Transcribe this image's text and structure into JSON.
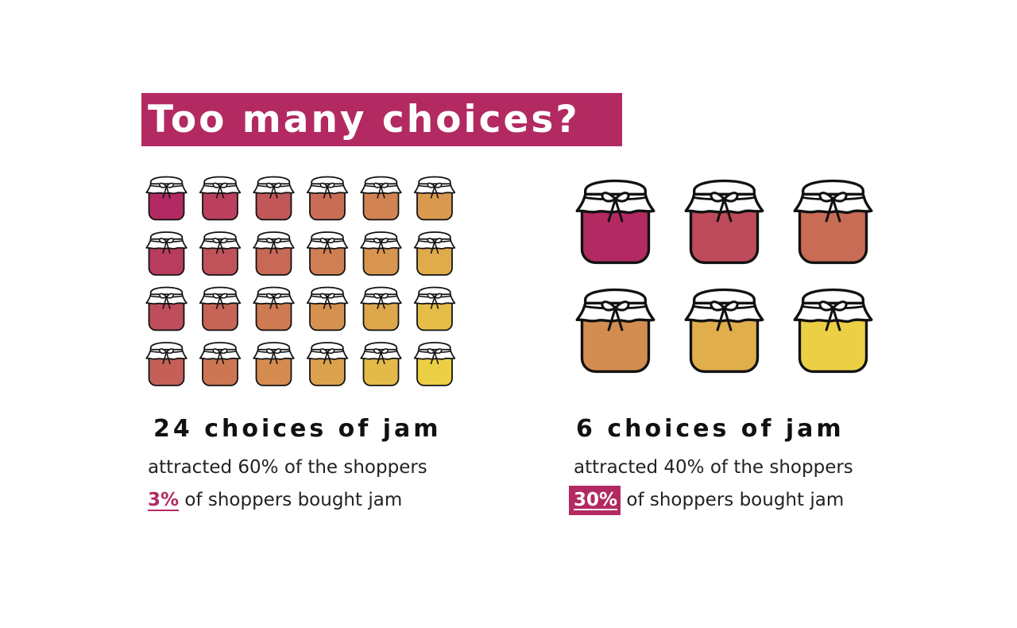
{
  "title": "Too many choices?",
  "left": {
    "heading": "24 choices of jam",
    "line1": "attracted 60% of the shoppers",
    "highlight": "3%",
    "line2_rest": " of shoppers bought jam"
  },
  "right": {
    "heading": "6 choices of jam",
    "line1": "attracted 40% of the shoppers",
    "highlight": "30%",
    "line2_rest": " of shoppers bought jam"
  },
  "colors": {
    "accent": "#b22a61",
    "jar_gradient_start": "#b22a61",
    "jar_gradient_end": "#ebcf45"
  },
  "icons": {
    "jar": "jam-jar-icon"
  }
}
